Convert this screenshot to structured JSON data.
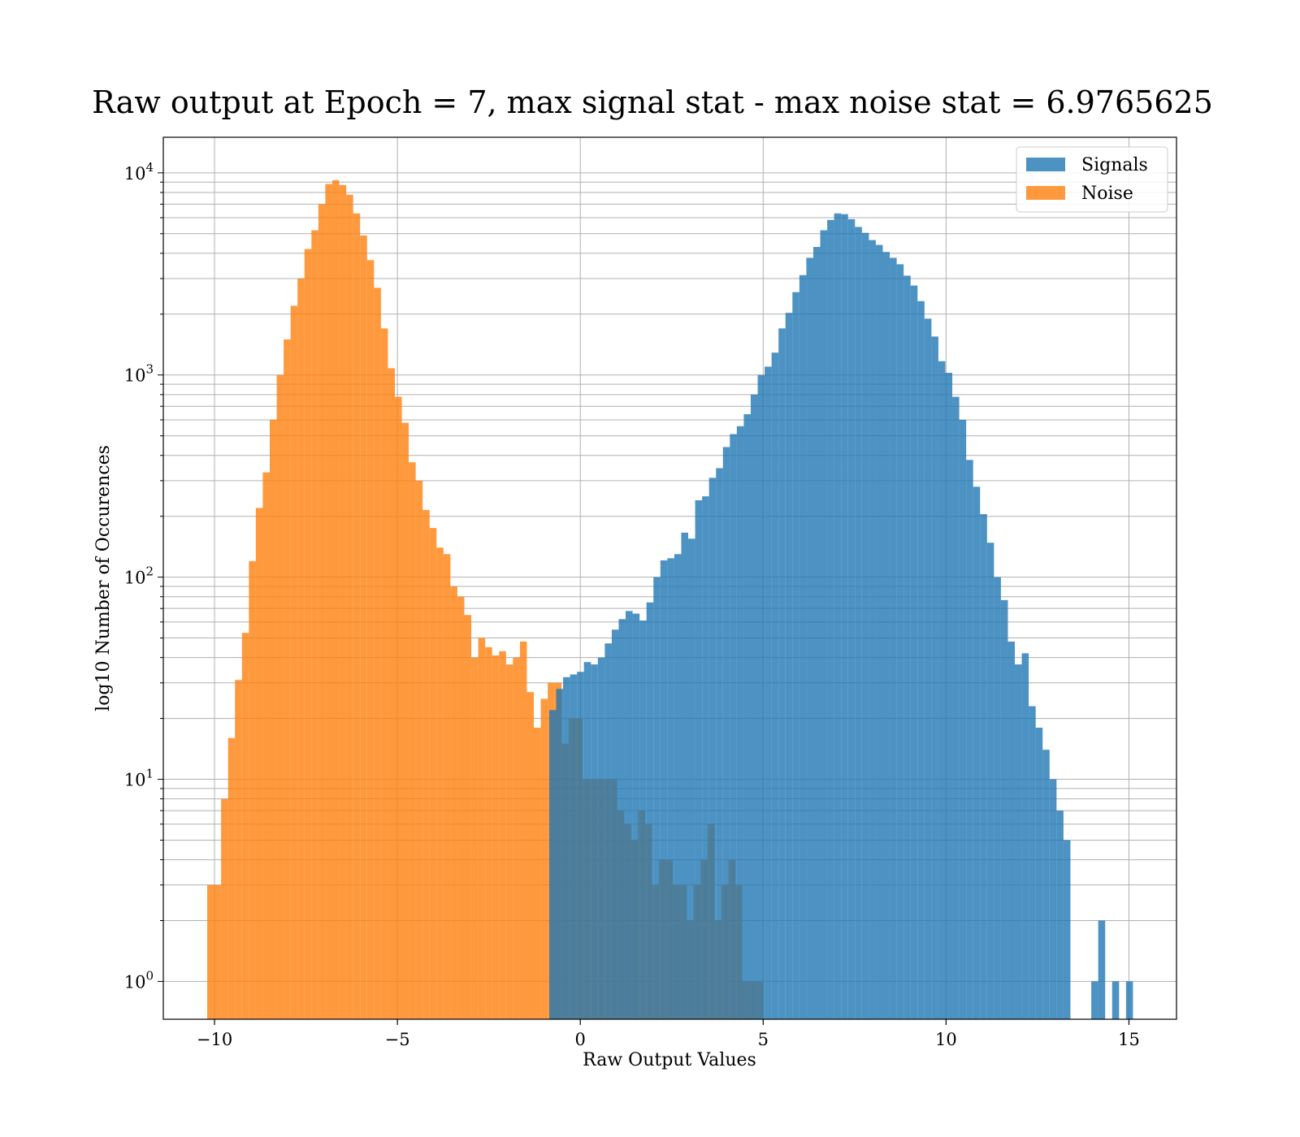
{
  "chart_data": {
    "type": "bar",
    "subtype": "overlapping-histogram",
    "title": "Raw output at Epoch = 7, max signal stat - max noise stat = 6.9765625",
    "xlabel": "Raw Output Values",
    "ylabel": "log10 Number of Occurences",
    "xlim": [
      -11.4,
      16.3
    ],
    "ylim": [
      0.65,
      15000
    ],
    "yscale": "log",
    "grid": true,
    "legend_position": "top-right",
    "x_ticks": [
      {
        "value": -10,
        "label": "−10"
      },
      {
        "value": -5,
        "label": "−5"
      },
      {
        "value": 0,
        "label": "0"
      },
      {
        "value": 5,
        "label": "5"
      },
      {
        "value": 10,
        "label": "10"
      },
      {
        "value": 15,
        "label": "15"
      }
    ],
    "y_ticks": [
      {
        "value": 1,
        "base": "10",
        "exp": "0"
      },
      {
        "value": 10,
        "base": "10",
        "exp": "1"
      },
      {
        "value": 100,
        "base": "10",
        "exp": "2"
      },
      {
        "value": 1000,
        "base": "10",
        "exp": "3"
      },
      {
        "value": 10000,
        "base": "10",
        "exp": "4"
      }
    ],
    "series": [
      {
        "name": "Signals",
        "color": "#1f77b4",
        "opacity": 0.8,
        "bin_start": -0.85,
        "bin_width": 0.19,
        "values": [
          22,
          28,
          32,
          33,
          34,
          38,
          37,
          40,
          47,
          55,
          62,
          68,
          66,
          61,
          75,
          100,
          121,
          124,
          130,
          166,
          155,
          240,
          251,
          310,
          346,
          440,
          510,
          558,
          640,
          800,
          1000,
          1100,
          1290,
          1700,
          2030,
          2570,
          3120,
          3800,
          4300,
          5200,
          5850,
          6300,
          6250,
          5900,
          5400,
          5050,
          4650,
          4400,
          4060,
          3800,
          3530,
          3100,
          2770,
          2320,
          1900,
          1550,
          1170,
          1025,
          780,
          600,
          380,
          280,
          205,
          148,
          100,
          77,
          48,
          37,
          42,
          23,
          18,
          14,
          10,
          7,
          5,
          0,
          0,
          0,
          1,
          2,
          0,
          1,
          0,
          1
        ]
      },
      {
        "name": "Noise",
        "color": "#ff7f0e",
        "opacity": 0.8,
        "bin_start": -10.2,
        "bin_width": 0.19,
        "values": [
          3,
          3,
          8,
          16,
          31,
          53,
          120,
          220,
          330,
          600,
          1000,
          1500,
          2200,
          3000,
          4200,
          5200,
          7000,
          8800,
          9200,
          8700,
          7800,
          6300,
          4900,
          3700,
          2700,
          1700,
          1080,
          780,
          580,
          370,
          300,
          215,
          175,
          140,
          130,
          90,
          80,
          65,
          40,
          50,
          45,
          41,
          43,
          37,
          40,
          48,
          27,
          18,
          25,
          30,
          30,
          15,
          20,
          20,
          10,
          10,
          10,
          10,
          10,
          7,
          6,
          5,
          7,
          6,
          3,
          4,
          4,
          3,
          3,
          2,
          3,
          4,
          6,
          2,
          3,
          4,
          3,
          1,
          1,
          1
        ]
      }
    ]
  },
  "legend": {
    "items": [
      {
        "label": "Signals",
        "color": "#1f77b4"
      },
      {
        "label": "Noise",
        "color": "#ff7f0e"
      }
    ]
  }
}
